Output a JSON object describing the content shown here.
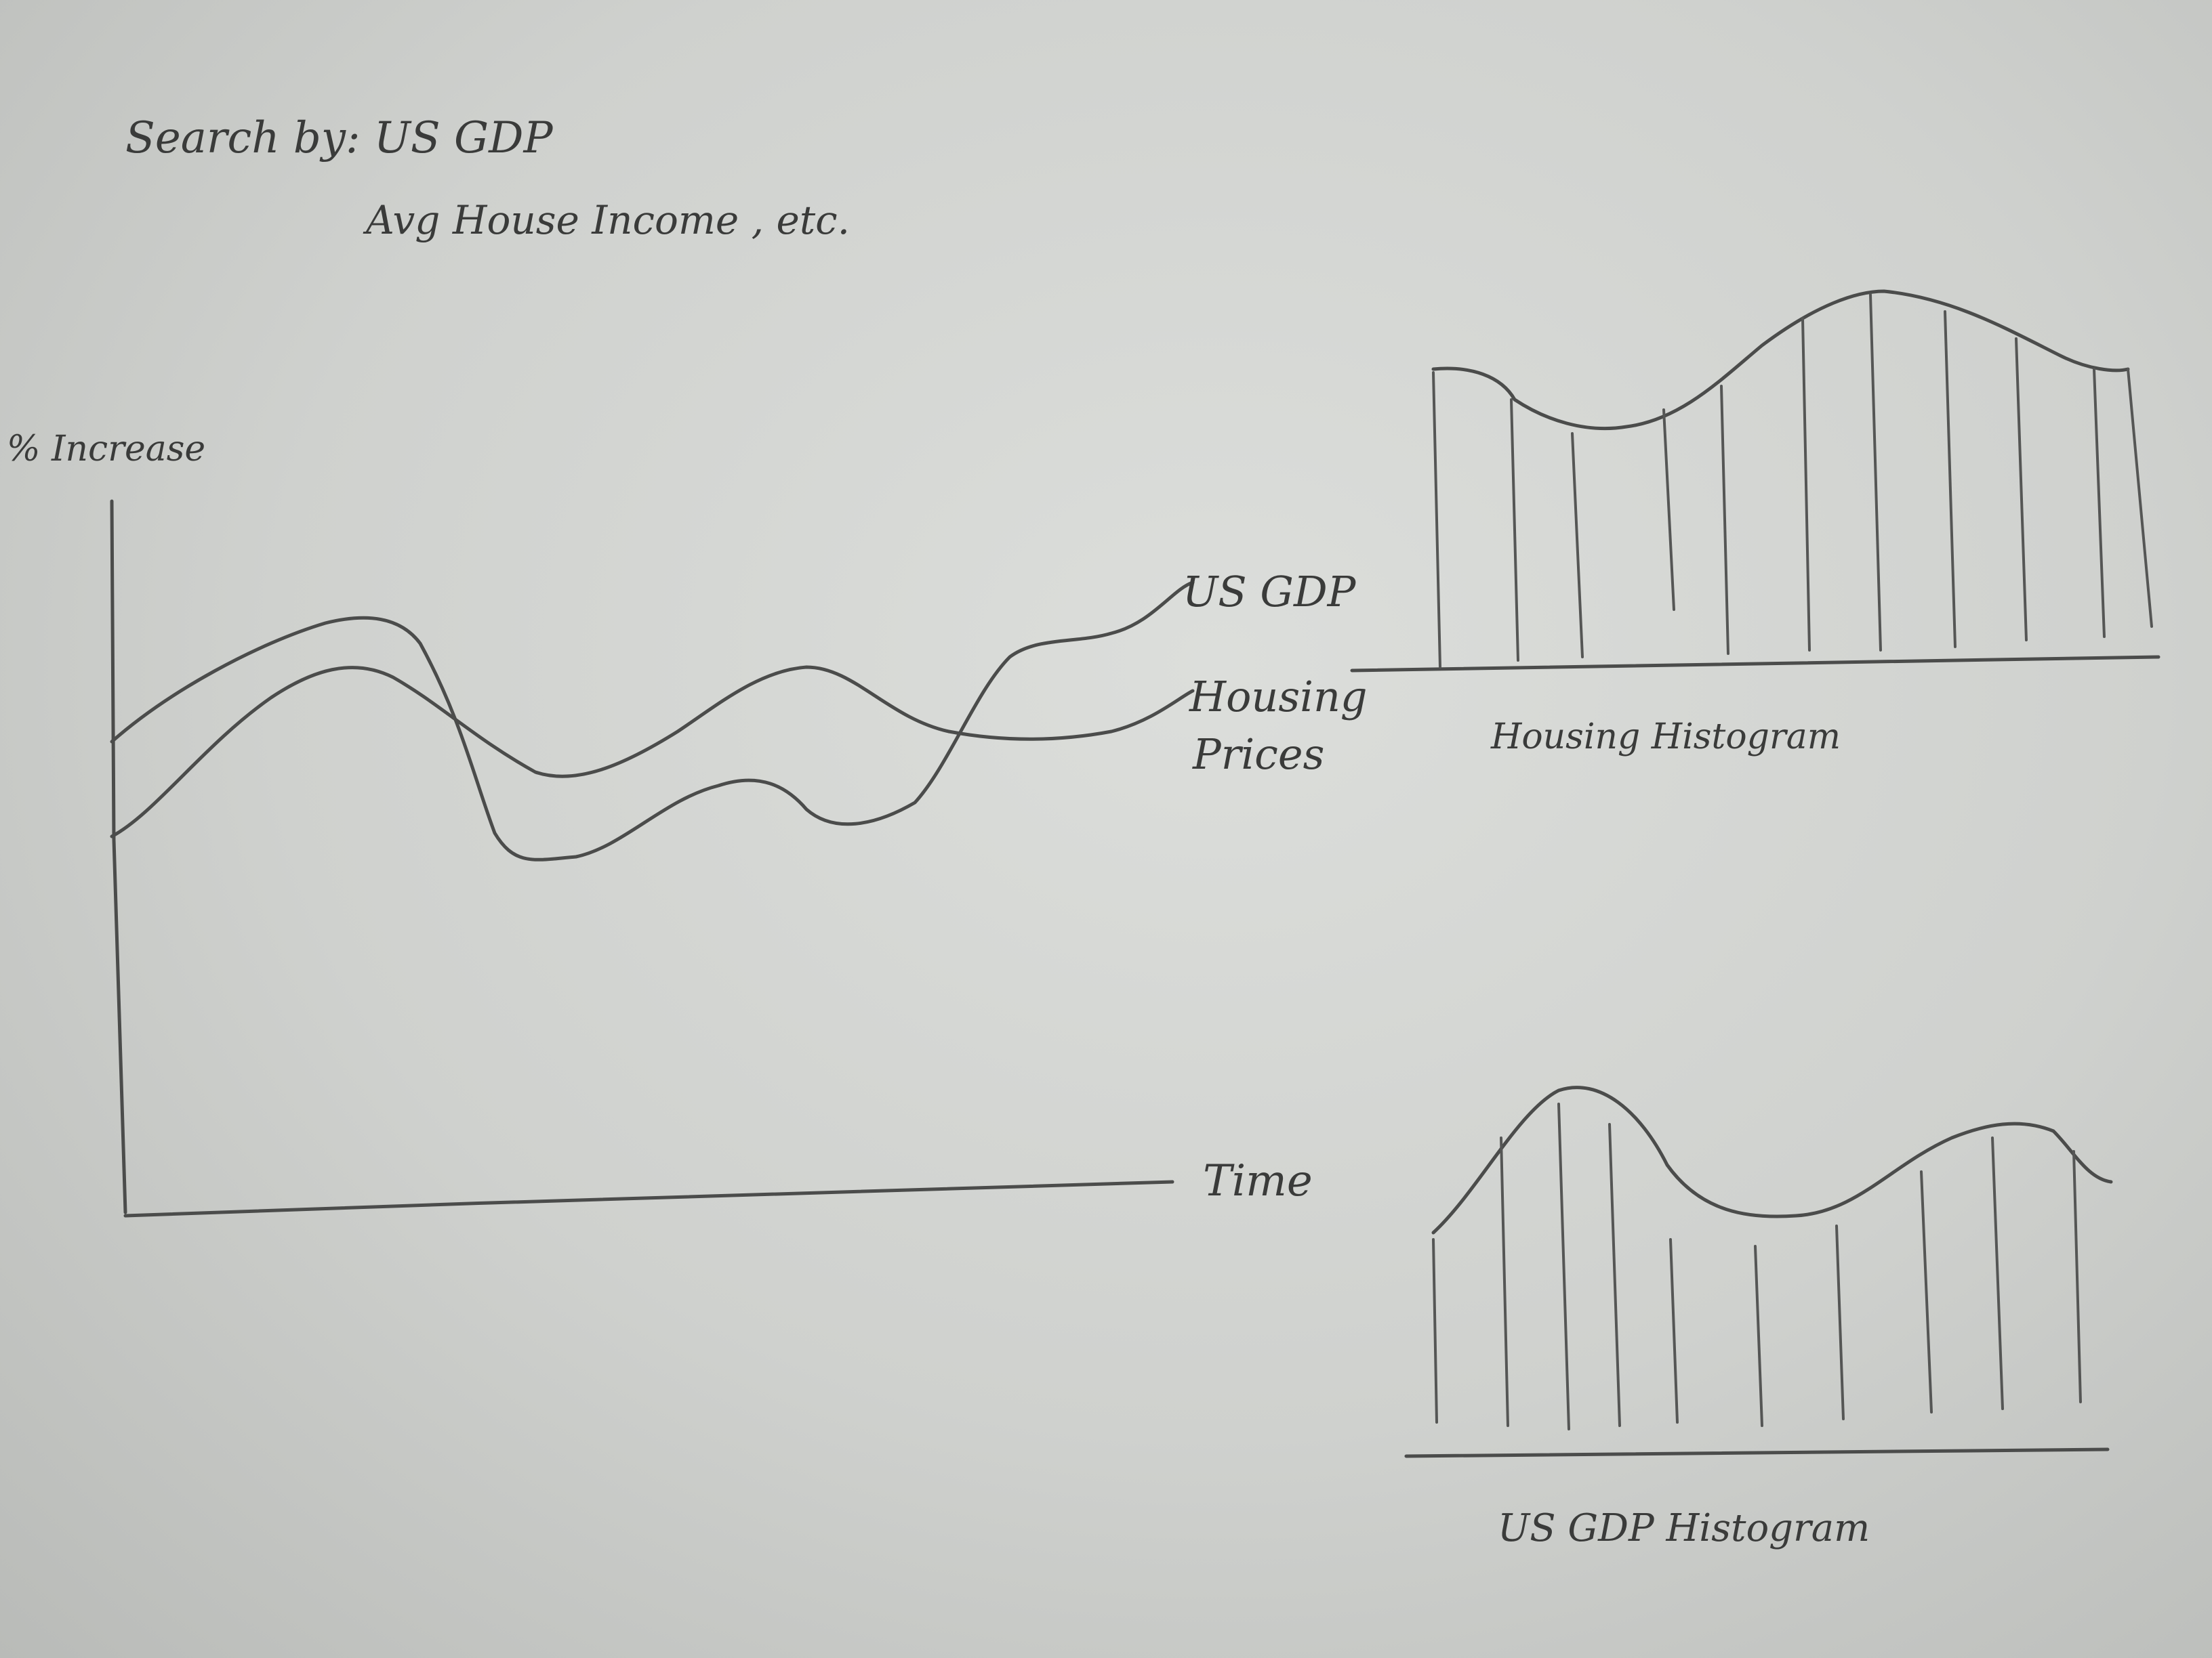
{
  "notes": {
    "line1": "Search by: US GDP",
    "line2": "Avg House Income , etc."
  },
  "main_chart": {
    "y_axis_label": "% Increase",
    "x_axis_label": "Time",
    "series": [
      {
        "name": "US GDP"
      },
      {
        "name_line1": "Housing",
        "name_line2": "Prices"
      }
    ]
  },
  "housing_histogram": {
    "caption": "Housing Histogram"
  },
  "gdp_histogram": {
    "caption": "US GDP Histogram"
  }
}
